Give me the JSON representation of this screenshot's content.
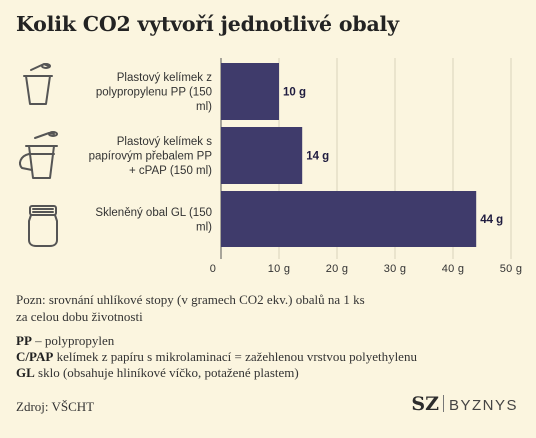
{
  "title": "Kolik CO2 vytvoří jednotlivé obaly",
  "chart_data": {
    "type": "bar",
    "orientation": "horizontal",
    "categories": [
      [
        "Plastový kelímek z",
        "polypropylenu PP (150",
        "ml)"
      ],
      [
        "Plastový kelímek s",
        "papírovým přebalem PP",
        "+ cPAP (150 ml)"
      ],
      [
        "Skleněný obal GL (150",
        "ml)"
      ]
    ],
    "values": [
      10,
      14,
      44
    ],
    "value_labels": [
      "10 g",
      "14 g",
      "44 g"
    ],
    "xlim": [
      0,
      50
    ],
    "x_ticks": [
      "0",
      "10 g",
      "20 g",
      "30 g",
      "40 g",
      "50 g"
    ],
    "grid": true,
    "bar_color": "#3f3b6b",
    "grid_color": "#d9d2bb"
  },
  "icons": [
    "plastic-cup-icon",
    "plastic-cup-sleeve-icon",
    "glass-jar-icon"
  ],
  "note": {
    "line1": "Pozn: srovnání uhlíkové stopy (v gramech CO2 ekv.) obalů na 1 ks",
    "line2": "za celou dobu životnosti"
  },
  "legend": [
    {
      "abbr": "PP",
      "text": " – polypropylen"
    },
    {
      "abbr": "C/PAP",
      "text": " kelímek z papíru s mikrolaminací = zažehlenou vrstvou polyethylenu"
    },
    {
      "abbr": "GL",
      "text": " sklo (obsahuje hliníkové víčko, potažené plastem)"
    }
  ],
  "source": "Zdroj: VŠCHT",
  "brand": {
    "sz": "SZ",
    "byznys": "BYZNYS"
  }
}
